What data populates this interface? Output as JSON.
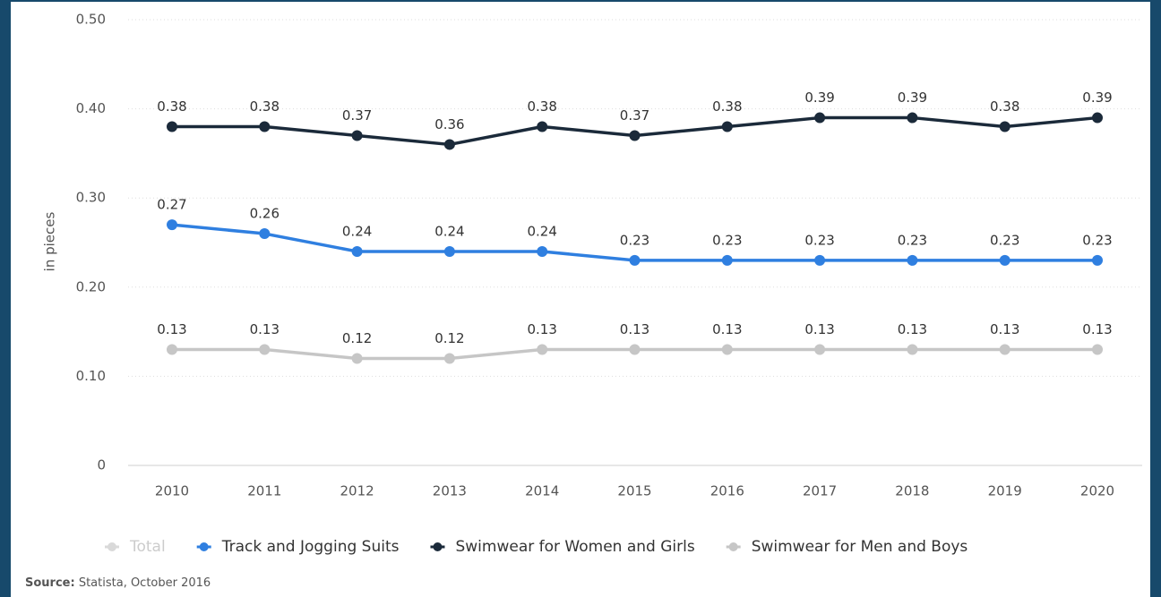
{
  "chart_data": {
    "type": "line",
    "y_label": "in pieces",
    "categories": [
      "2010",
      "2011",
      "2012",
      "2013",
      "2014",
      "2015",
      "2016",
      "2017",
      "2018",
      "2019",
      "2020"
    ],
    "series": [
      {
        "name": "Total",
        "color": "#d9d9d9",
        "hidden": true,
        "values": [
          null,
          null,
          null,
          null,
          null,
          null,
          null,
          null,
          null,
          null,
          null
        ]
      },
      {
        "name": "Track and Jogging Suits",
        "color": "#2f7fe0",
        "values": [
          0.27,
          0.26,
          0.24,
          0.24,
          0.24,
          0.23,
          0.23,
          0.23,
          0.23,
          0.23,
          0.23
        ]
      },
      {
        "name": "Swimwear for Women and Girls",
        "color": "#1b2a3a",
        "values": [
          0.38,
          0.38,
          0.37,
          0.36,
          0.38,
          0.37,
          0.38,
          0.39,
          0.39,
          0.38,
          0.39
        ]
      },
      {
        "name": "Swimwear for Men and Boys",
        "color": "#c6c6c6",
        "values": [
          0.13,
          0.13,
          0.12,
          0.12,
          0.13,
          0.13,
          0.13,
          0.13,
          0.13,
          0.13,
          0.13
        ]
      }
    ],
    "ylim": [
      0,
      0.5
    ],
    "yticks": [
      0,
      {
        "value": 0.1,
        "label": "0.10"
      },
      {
        "value": 0.2,
        "label": "0.20"
      },
      {
        "value": 0.3,
        "label": "0.30"
      },
      {
        "value": 0.4,
        "label": "0.40"
      },
      {
        "value": 0.5,
        "label": "0.50"
      }
    ],
    "grid": true,
    "legend": "bottom",
    "source_label": "Source:",
    "source": "Statista, October 2016"
  }
}
